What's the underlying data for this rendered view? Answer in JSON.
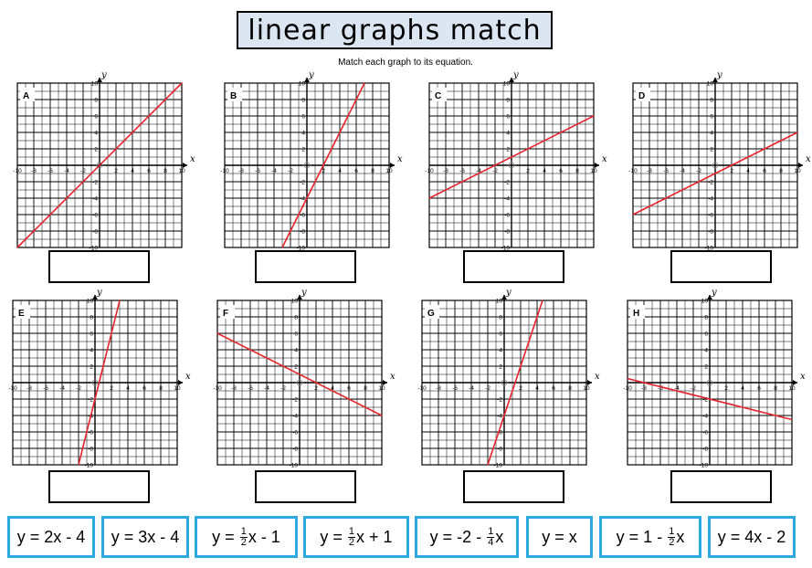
{
  "title": "linear graphs match",
  "subtitle": "Match each graph to its equation.",
  "axis": {
    "x_label": "x",
    "y_label": "y",
    "x_ticks": [
      "-10",
      "-8",
      "-6",
      "-4",
      "-2",
      "2",
      "4",
      "6",
      "8",
      "10"
    ],
    "y_ticks": [
      "10",
      "8",
      "6",
      "4",
      "2",
      "-2",
      "-4",
      "-6",
      "-8",
      "-10"
    ]
  },
  "graphs": [
    {
      "label": "A"
    },
    {
      "label": "B"
    },
    {
      "label": "C"
    },
    {
      "label": "D"
    },
    {
      "label": "E"
    },
    {
      "label": "F"
    },
    {
      "label": "G"
    },
    {
      "label": "H"
    }
  ],
  "chart_data": [
    {
      "type": "line",
      "label": "A",
      "xlim": [
        -10,
        10
      ],
      "ylim": [
        -10,
        10
      ],
      "grid": true,
      "line": {
        "slope": 1,
        "intercept": 0
      },
      "color": "#e8222a"
    },
    {
      "type": "line",
      "label": "B",
      "xlim": [
        -10,
        10
      ],
      "ylim": [
        -10,
        10
      ],
      "grid": true,
      "line": {
        "slope": 2,
        "intercept": -4
      },
      "color": "#e8222a"
    },
    {
      "type": "line",
      "label": "C",
      "xlim": [
        -10,
        10
      ],
      "ylim": [
        -10,
        10
      ],
      "grid": true,
      "line": {
        "slope": 0.5,
        "intercept": 1
      },
      "color": "#e8222a"
    },
    {
      "type": "line",
      "label": "D",
      "xlim": [
        -10,
        10
      ],
      "ylim": [
        -10,
        10
      ],
      "grid": true,
      "line": {
        "slope": 0.5,
        "intercept": -1
      },
      "color": "#e8222a"
    },
    {
      "type": "line",
      "label": "E",
      "xlim": [
        -10,
        10
      ],
      "ylim": [
        -10,
        10
      ],
      "grid": true,
      "line": {
        "slope": 4,
        "intercept": -2
      },
      "color": "#e8222a"
    },
    {
      "type": "line",
      "label": "F",
      "xlim": [
        -10,
        10
      ],
      "ylim": [
        -10,
        10
      ],
      "grid": true,
      "line": {
        "slope": -0.5,
        "intercept": 1
      },
      "color": "#e8222a"
    },
    {
      "type": "line",
      "label": "G",
      "xlim": [
        -10,
        10
      ],
      "ylim": [
        -10,
        10
      ],
      "grid": true,
      "line": {
        "slope": 3,
        "intercept": -4
      },
      "color": "#e8222a"
    },
    {
      "type": "line",
      "label": "H",
      "xlim": [
        -10,
        10
      ],
      "ylim": [
        -10,
        10
      ],
      "grid": true,
      "line": {
        "slope": -0.25,
        "intercept": -2
      },
      "color": "#e8222a"
    }
  ],
  "equations": [
    {
      "pre": "y = 2x - 4",
      "num": "",
      "den": "",
      "post": ""
    },
    {
      "pre": "y = 3x - 4",
      "num": "",
      "den": "",
      "post": ""
    },
    {
      "pre": "y = ",
      "num": "1",
      "den": "2",
      "post": "x - 1"
    },
    {
      "pre": "y = ",
      "num": "1",
      "den": "2",
      "post": "x + 1"
    },
    {
      "pre": "y = -2 - ",
      "num": "1",
      "den": "4",
      "post": "x"
    },
    {
      "pre": "y = x",
      "num": "",
      "den": "",
      "post": ""
    },
    {
      "pre": "y = 1 - ",
      "num": "1",
      "den": "2",
      "post": "x"
    },
    {
      "pre": "y = 4x - 2",
      "num": "",
      "den": "",
      "post": ""
    }
  ],
  "colors": {
    "line": "#e8222a",
    "card_border": "#2fa8df",
    "title_bg": "#dce6f2"
  }
}
